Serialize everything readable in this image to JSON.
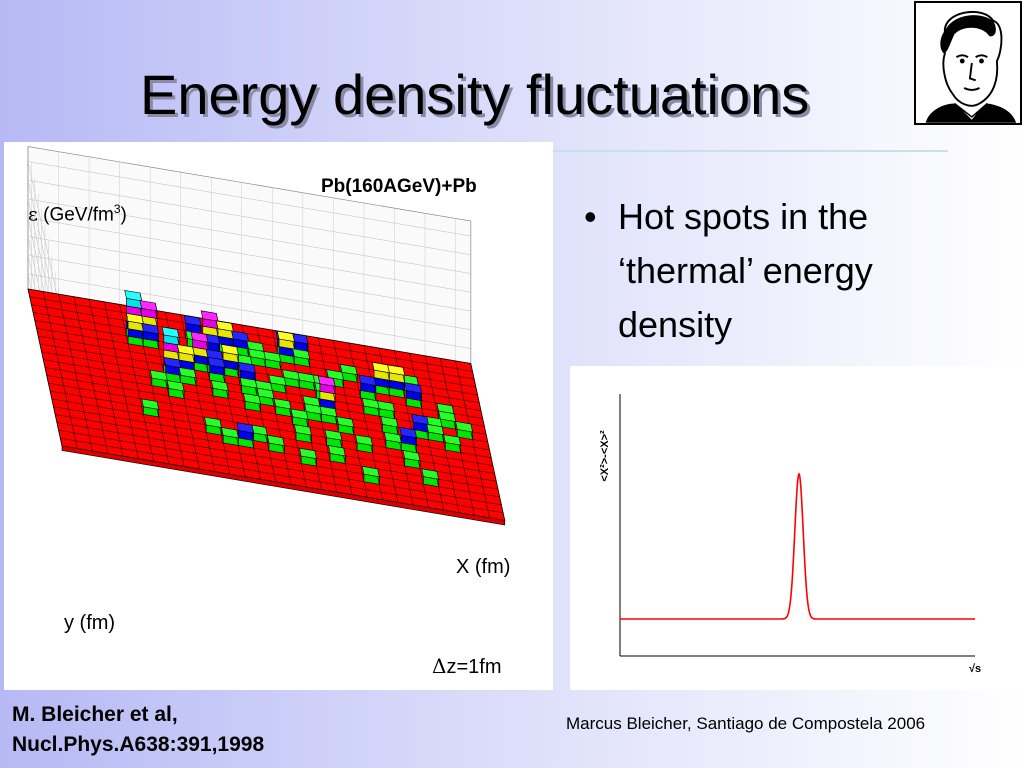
{
  "slide": {
    "title": "Energy density fluctuations",
    "bullets": [
      {
        "marker": "•",
        "text": " Hot spots in the ‘thermal’ energy density"
      }
    ],
    "reference_line1": "M. Bleicher et al,",
    "reference_line2": "Nucl.Phys.A638:391,1998",
    "footer": "Marcus Bleicher, Santiago de Compostela 2006"
  },
  "lego_plot": {
    "reaction": "Pb(160AGeV)+Pb",
    "z_label_symbol": "ε",
    "z_label_unit": " (GeV/fm",
    "z_label_exp": "3",
    "z_label_close": ")",
    "x_label": "X (fm)",
    "y_label": "y (fm)",
    "dz_symbol": "Δ",
    "dz_text": "z=1fm",
    "colors": {
      "floor": "#ff0000",
      "level1": "#00ff00",
      "level2": "#0000ff",
      "level3": "#ffff00",
      "level4": "#ff00ff",
      "level5": "#00ffff"
    }
  },
  "chart_data": {
    "type": "line",
    "title": "",
    "xlabel": "√s",
    "ylabel": "<X²>-<X>²",
    "series": [
      {
        "color": "#ff0000",
        "shape": "constant baseline with single narrow gaussian peak"
      }
    ]
  }
}
